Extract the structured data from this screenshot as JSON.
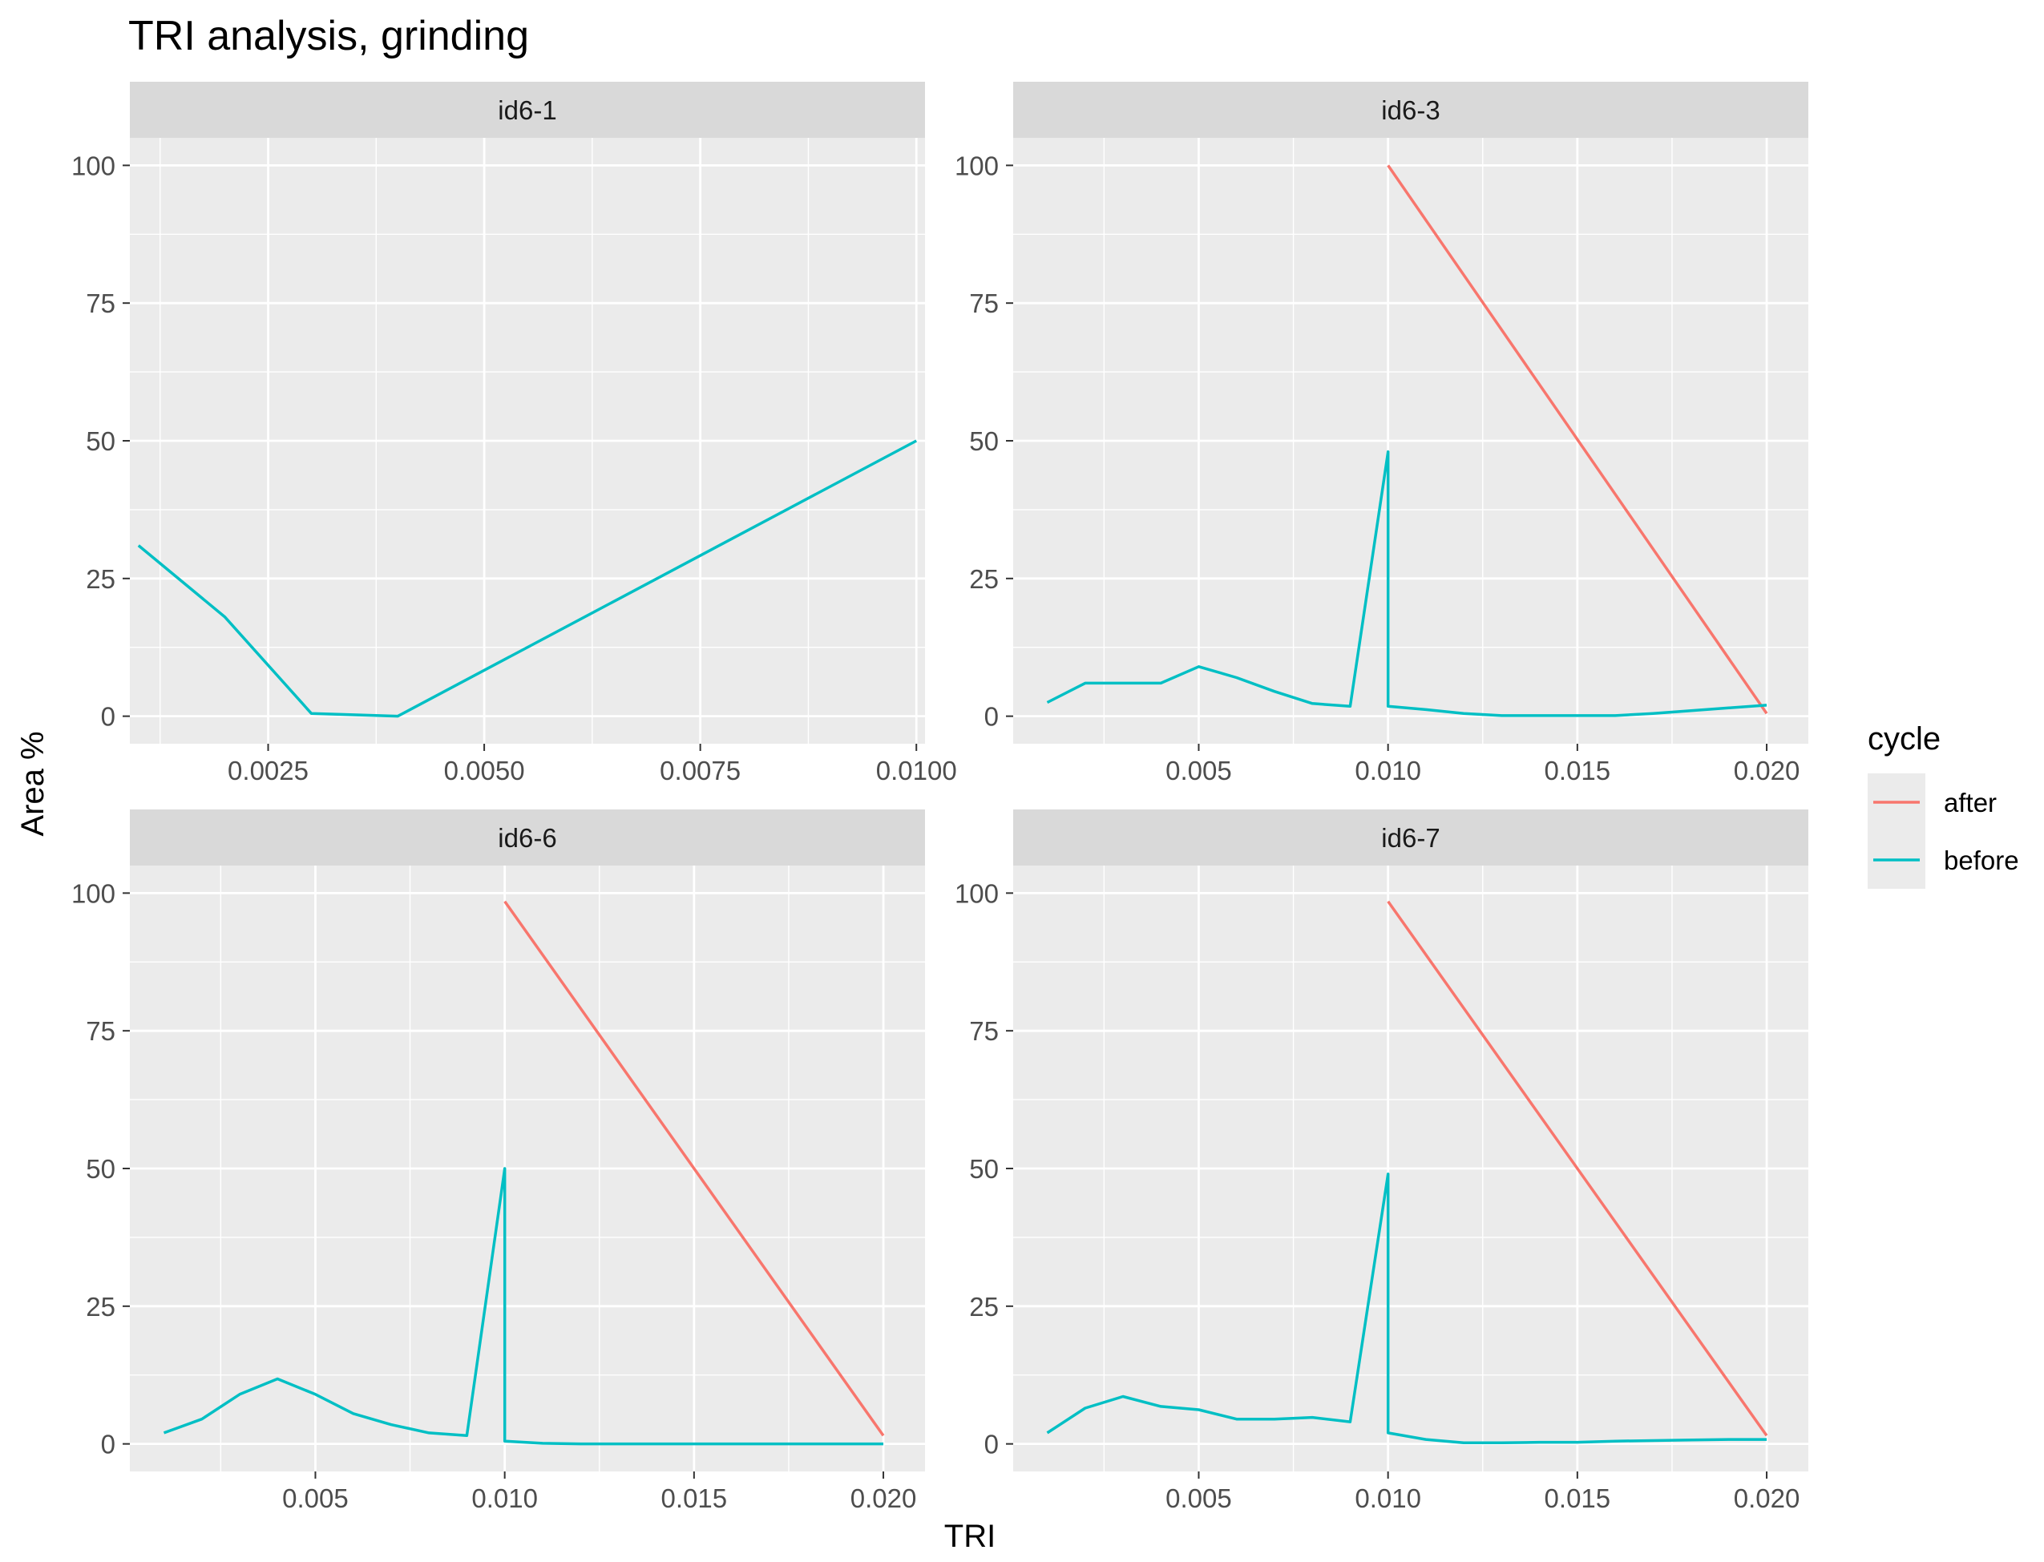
{
  "chart_data": {
    "type": "line",
    "title": "TRI analysis, grinding",
    "xlabel": "TRI",
    "ylabel": "Area %",
    "grid": true,
    "legend": {
      "title": "cycle",
      "position": "right",
      "entries": [
        {
          "label": "after",
          "color": "#F8766D"
        },
        {
          "label": "before",
          "color": "#00BFC4"
        }
      ]
    },
    "panels": [
      {
        "label": "id6-1",
        "xlim": [
          0.0009,
          0.0101
        ],
        "ylim": [
          -5,
          105
        ],
        "x_ticks": [
          "0.0025",
          "0.0050",
          "0.0075",
          "0.0100"
        ],
        "x_tick_values": [
          0.0025,
          0.005,
          0.0075,
          0.01
        ],
        "y_ticks": [
          "0",
          "25",
          "50",
          "75",
          "100"
        ],
        "y_tick_values": [
          0,
          25,
          50,
          75,
          100
        ],
        "series": [
          {
            "name": "before",
            "x": [
              0.001,
              0.002,
              0.003,
              0.004,
              0.01
            ],
            "y": [
              31,
              18,
              0.5,
              0,
              50
            ]
          }
        ]
      },
      {
        "label": "id6-3",
        "xlim": [
          0.0001,
          0.0211
        ],
        "ylim": [
          -5,
          105
        ],
        "x_ticks": [
          "0.005",
          "0.010",
          "0.015",
          "0.020"
        ],
        "x_tick_values": [
          0.005,
          0.01,
          0.015,
          0.02
        ],
        "y_ticks": [
          "0",
          "25",
          "50",
          "75",
          "100"
        ],
        "y_tick_values": [
          0,
          25,
          50,
          75,
          100
        ],
        "series": [
          {
            "name": "after",
            "x": [
              0.01,
              0.02
            ],
            "y": [
              100,
              0.5
            ]
          },
          {
            "name": "before",
            "x": [
              0.001,
              0.002,
              0.003,
              0.004,
              0.005,
              0.006,
              0.007,
              0.008,
              0.009,
              0.01,
              0.01,
              0.011,
              0.012,
              0.013,
              0.014,
              0.015,
              0.016,
              0.017,
              0.018,
              0.019,
              0.02
            ],
            "y": [
              2.5,
              6,
              6,
              6,
              9,
              7,
              4.5,
              2.3,
              1.8,
              48,
              1.8,
              1.2,
              0.5,
              0.1,
              0.1,
              0.1,
              0.1,
              0.5,
              1,
              1.5,
              2
            ]
          }
        ]
      },
      {
        "label": "id6-6",
        "xlim": [
          0.0001,
          0.0211
        ],
        "ylim": [
          -5,
          105
        ],
        "x_ticks": [
          "0.005",
          "0.010",
          "0.015",
          "0.020"
        ],
        "x_tick_values": [
          0.005,
          0.01,
          0.015,
          0.02
        ],
        "y_ticks": [
          "0",
          "25",
          "50",
          "75",
          "100"
        ],
        "y_tick_values": [
          0,
          25,
          50,
          75,
          100
        ],
        "series": [
          {
            "name": "after",
            "x": [
              0.01,
              0.02
            ],
            "y": [
              98.5,
              1.5
            ]
          },
          {
            "name": "before",
            "x": [
              0.001,
              0.002,
              0.003,
              0.004,
              0.005,
              0.006,
              0.007,
              0.008,
              0.009,
              0.01,
              0.01,
              0.011,
              0.012,
              0.013,
              0.014,
              0.015,
              0.016,
              0.017,
              0.018,
              0.019,
              0.02
            ],
            "y": [
              2,
              4.5,
              9,
              11.8,
              9,
              5.5,
              3.5,
              2,
              1.5,
              50,
              0.5,
              0.1,
              0,
              0,
              0,
              0,
              0,
              0,
              0,
              0,
              0
            ]
          }
        ]
      },
      {
        "label": "id6-7",
        "xlim": [
          0.0001,
          0.0211
        ],
        "ylim": [
          -5,
          105
        ],
        "x_ticks": [
          "0.005",
          "0.010",
          "0.015",
          "0.020"
        ],
        "x_tick_values": [
          0.005,
          0.01,
          0.015,
          0.02
        ],
        "y_ticks": [
          "0",
          "25",
          "50",
          "75",
          "100"
        ],
        "y_tick_values": [
          0,
          25,
          50,
          75,
          100
        ],
        "series": [
          {
            "name": "after",
            "x": [
              0.01,
              0.02
            ],
            "y": [
              98.5,
              1.5
            ]
          },
          {
            "name": "before",
            "x": [
              0.001,
              0.002,
              0.003,
              0.004,
              0.005,
              0.006,
              0.007,
              0.008,
              0.009,
              0.01,
              0.01,
              0.011,
              0.012,
              0.013,
              0.014,
              0.015,
              0.016,
              0.017,
              0.018,
              0.019,
              0.02
            ],
            "y": [
              2,
              6.5,
              8.6,
              6.8,
              6.2,
              4.5,
              4.5,
              4.8,
              4,
              49,
              2,
              0.8,
              0.2,
              0.2,
              0.3,
              0.3,
              0.5,
              0.6,
              0.7,
              0.8,
              0.8
            ]
          }
        ]
      }
    ]
  }
}
